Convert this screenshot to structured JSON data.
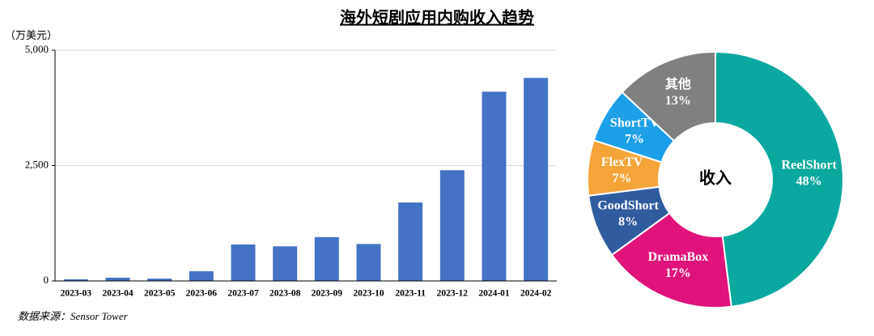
{
  "title": "海外短剧应用内购收入趋势",
  "source": "数据来源：Sensor Tower",
  "chart_data": [
    {
      "type": "bar",
      "y_label": "（万美元）",
      "categories": [
        "2023-03",
        "2023-04",
        "2023-05",
        "2023-06",
        "2023-07",
        "2023-08",
        "2023-09",
        "2023-10",
        "2023-11",
        "2023-12",
        "2024-01",
        "2024-02"
      ],
      "values": [
        35,
        70,
        50,
        210,
        790,
        750,
        950,
        800,
        1700,
        2400,
        4100,
        4400
      ],
      "color": "#4472c4",
      "ylim": [
        0,
        5000
      ],
      "yticks": [
        0,
        {
          "value": 2500,
          "label": "2,500"
        },
        {
          "value": 5000,
          "label": "5,000"
        }
      ],
      "grid": true
    },
    {
      "type": "pie",
      "center_label": "收入",
      "categories": [
        "ReelShort",
        "DramaBox",
        "GoodShort",
        "FlexTV",
        "ShortTV",
        "其他"
      ],
      "values": [
        48,
        17,
        8,
        7,
        7,
        13
      ],
      "value_labels": [
        "48%",
        "17%",
        "8%",
        "7%",
        "7%",
        "13%"
      ],
      "colors": [
        "#0aa89e",
        "#e0137a",
        "#2e5c9e",
        "#f5a43a",
        "#1ea0e8",
        "#808080"
      ]
    }
  ]
}
